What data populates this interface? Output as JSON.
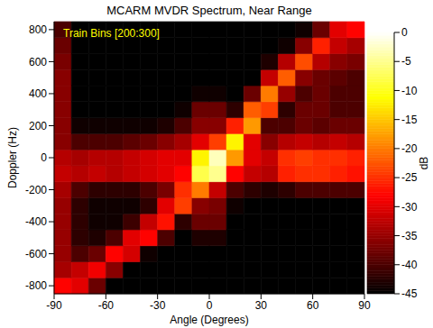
{
  "chart_data": {
    "type": "heatmap",
    "title": "MCARM MVDR Spectrum, Near Range",
    "x_label": "Angle (Degrees)",
    "y_label": "Doppler (Hz)",
    "annotation": "Train Bins [200:300]",
    "xlim": [
      -90,
      90
    ],
    "xticks": [
      -90,
      -60,
      -30,
      0,
      30,
      60,
      90
    ],
    "ylim": [
      -850,
      850
    ],
    "yticks": [
      -800,
      -600,
      -400,
      -200,
      0,
      200,
      400,
      600,
      800
    ],
    "x_bins": [
      -90,
      -80,
      -70,
      -60,
      -50,
      -40,
      -30,
      -20,
      -10,
      0,
      10,
      20,
      30,
      40,
      50,
      60,
      70,
      80,
      90
    ],
    "y_bins": [
      -850,
      -750,
      -650,
      -550,
      -450,
      -350,
      -250,
      -150,
      -50,
      50,
      150,
      250,
      350,
      450,
      550,
      650,
      750,
      850
    ],
    "cells": [
      [
        -28,
        -30,
        -38,
        -45,
        -45,
        -45,
        -45,
        -45,
        -45,
        -45,
        -45,
        -45,
        -45,
        -45,
        -45,
        -45,
        -45,
        -45
      ],
      [
        -34,
        -32,
        -29,
        -36,
        -45,
        -45,
        -45,
        -45,
        -45,
        -45,
        -45,
        -45,
        -45,
        -45,
        -45,
        -45,
        -45,
        -45
      ],
      [
        -35,
        -40,
        -38,
        -28,
        -31,
        -44,
        -45,
        -45,
        -45,
        -45,
        -45,
        -45,
        -45,
        -45,
        -45,
        -45,
        -45,
        -45
      ],
      [
        -35,
        -42,
        -43,
        -40,
        -30,
        -28,
        -40,
        -45,
        -43,
        -43,
        -45,
        -45,
        -45,
        -45,
        -45,
        -45,
        -45,
        -45
      ],
      [
        -35,
        -42,
        -44,
        -44,
        -41,
        -32,
        -27,
        -42,
        -38,
        -38,
        -45,
        -45,
        -45,
        -45,
        -45,
        -45,
        -45,
        -45
      ],
      [
        -35,
        -42,
        -44,
        -44,
        -44,
        -42,
        -30,
        -24,
        -36,
        -37,
        -44,
        -45,
        -45,
        -45,
        -45,
        -45,
        -45,
        -45
      ],
      [
        -34,
        -40,
        -42,
        -42,
        -42,
        -40,
        -37,
        -25,
        -20,
        -32,
        -40,
        -42,
        -43,
        -42,
        -40,
        -40,
        -40,
        -40
      ],
      [
        -32,
        -33,
        -32,
        -33,
        -32,
        -31,
        -30,
        -28,
        -8,
        -5,
        -28,
        -32,
        -33,
        -26,
        -25,
        -25,
        -26,
        -27
      ],
      [
        -33,
        -34,
        -33,
        -33,
        -32,
        -31,
        -30,
        -30,
        -12,
        -3,
        -18,
        -30,
        -32,
        -25,
        -24,
        -25,
        -25,
        -26
      ],
      [
        -36,
        -40,
        -40,
        -40,
        -39,
        -38,
        -36,
        -34,
        -30,
        -24,
        -12,
        -30,
        -36,
        -33,
        -32,
        -33,
        -32,
        -33
      ],
      [
        -36,
        -44,
        -44,
        -44,
        -44,
        -44,
        -43,
        -40,
        -36,
        -36,
        -26,
        -18,
        -40,
        -40,
        -38,
        -39,
        -38,
        -38
      ],
      [
        -36,
        -45,
        -45,
        -45,
        -45,
        -45,
        -45,
        -44,
        -38,
        -38,
        -42,
        -22,
        -24,
        -42,
        -38,
        -38,
        -40,
        -40
      ],
      [
        -36,
        -45,
        -45,
        -45,
        -45,
        -45,
        -45,
        -45,
        -44,
        -44,
        -45,
        -38,
        -20,
        -35,
        -40,
        -38,
        -40,
        -40
      ],
      [
        -36,
        -45,
        -45,
        -45,
        -45,
        -45,
        -45,
        -45,
        -45,
        -45,
        -45,
        -45,
        -32,
        -22,
        -36,
        -38,
        -39,
        -40
      ],
      [
        -37,
        -45,
        -45,
        -45,
        -45,
        -45,
        -45,
        -45,
        -45,
        -45,
        -45,
        -45,
        -43,
        -33,
        -23,
        -33,
        -36,
        -37
      ],
      [
        -38,
        -45,
        -45,
        -45,
        -45,
        -45,
        -45,
        -45,
        -45,
        -45,
        -45,
        -45,
        -45,
        -44,
        -36,
        -26,
        -32,
        -34
      ],
      [
        -40,
        -45,
        -45,
        -45,
        -45,
        -45,
        -45,
        -45,
        -45,
        -45,
        -45,
        -45,
        -45,
        -45,
        -44,
        -38,
        -30,
        -28
      ]
    ],
    "colorbar": {
      "label": "dB",
      "range": [
        -45,
        0
      ],
      "ticks": [
        0,
        -5,
        -10,
        -15,
        -20,
        -25,
        -30,
        -35,
        -40,
        -45
      ]
    }
  }
}
